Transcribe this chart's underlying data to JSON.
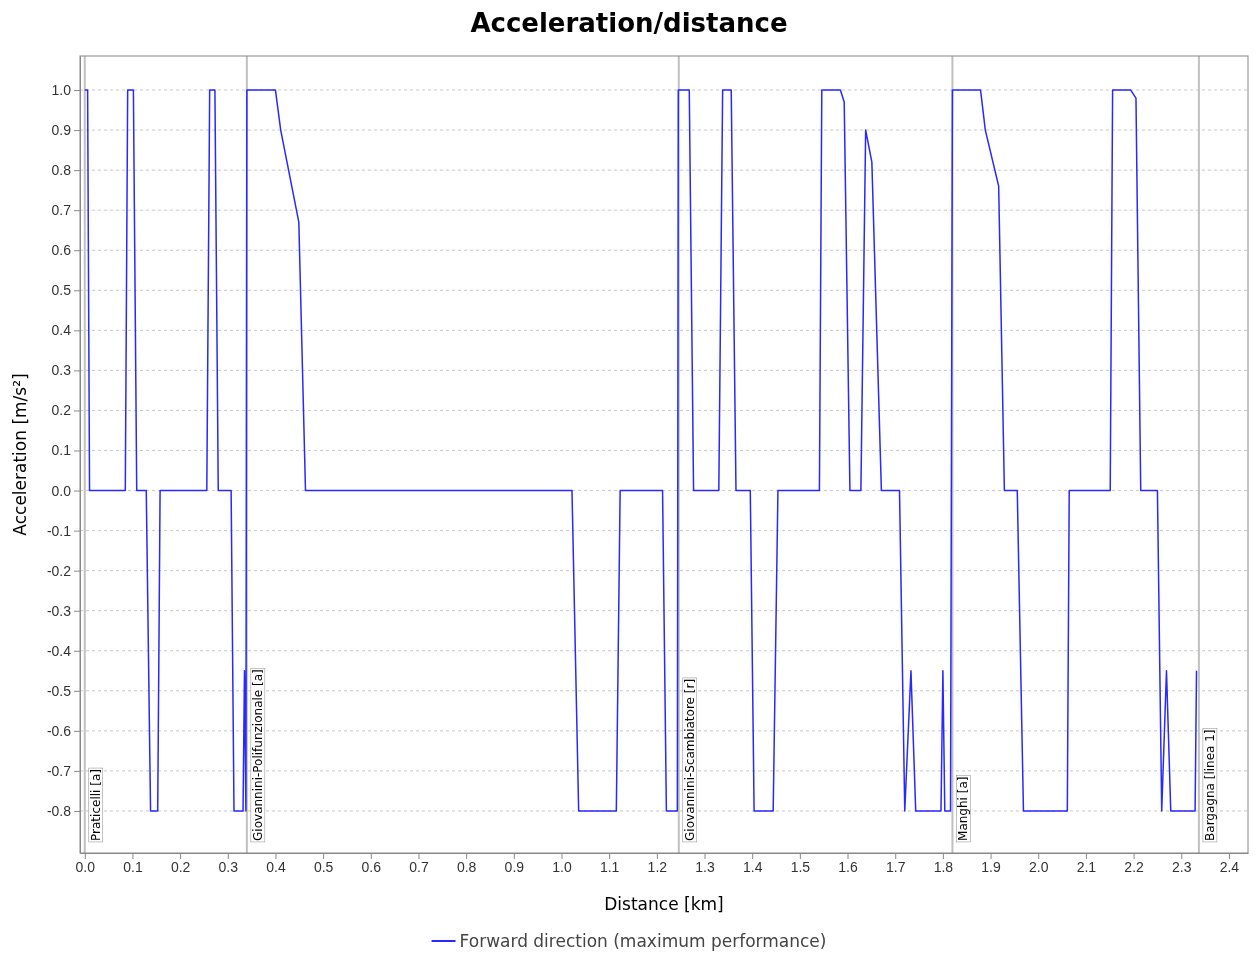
{
  "chart_data": {
    "type": "line",
    "title": "Acceleration/distance",
    "xlabel": "Distance [km]",
    "ylabel": "Acceleration [m/s²]",
    "xlim": [
      -0.01,
      2.44
    ],
    "ylim": [
      -0.905,
      1.085
    ],
    "xticks": [
      {
        "value": 0,
        "label": "0.0"
      },
      {
        "value": 0.1,
        "label": "0.1"
      },
      {
        "value": 0.2,
        "label": "0.2"
      },
      {
        "value": 0.3,
        "label": "0.3"
      },
      {
        "value": 0.4,
        "label": "0.4"
      },
      {
        "value": 0.5,
        "label": "0.5"
      },
      {
        "value": 0.6,
        "label": "0.6"
      },
      {
        "value": 0.7,
        "label": "0.7"
      },
      {
        "value": 0.8,
        "label": "0.8"
      },
      {
        "value": 0.9,
        "label": "0.9"
      },
      {
        "value": 1,
        "label": "1.0"
      },
      {
        "value": 1.1,
        "label": "1.1"
      },
      {
        "value": 1.2,
        "label": "1.2"
      },
      {
        "value": 1.3,
        "label": "1.3"
      },
      {
        "value": 1.4,
        "label": "1.4"
      },
      {
        "value": 1.5,
        "label": "1.5"
      },
      {
        "value": 1.6,
        "label": "1.6"
      },
      {
        "value": 1.7,
        "label": "1.7"
      },
      {
        "value": 1.8,
        "label": "1.8"
      },
      {
        "value": 1.9,
        "label": "1.9"
      },
      {
        "value": 2,
        "label": "2.0"
      },
      {
        "value": 2.1,
        "label": "2.1"
      },
      {
        "value": 2.2,
        "label": "2.2"
      },
      {
        "value": 2.3,
        "label": "2.3"
      },
      {
        "value": 2.4,
        "label": "2.4"
      }
    ],
    "yticks": [
      {
        "value": 1,
        "label": "1.0"
      },
      {
        "value": 0.9,
        "label": "0.9"
      },
      {
        "value": 0.8,
        "label": "0.8"
      },
      {
        "value": 0.7,
        "label": "0.7"
      },
      {
        "value": 0.6,
        "label": "0.6"
      },
      {
        "value": 0.5,
        "label": "0.5"
      },
      {
        "value": 0.4,
        "label": "0.4"
      },
      {
        "value": 0.3,
        "label": "0.3"
      },
      {
        "value": 0.2,
        "label": "0.2"
      },
      {
        "value": 0.1,
        "label": "0.1"
      },
      {
        "value": 0,
        "label": "0.0"
      },
      {
        "value": -0.1,
        "label": "-0.1"
      },
      {
        "value": -0.2,
        "label": "-0.2"
      },
      {
        "value": -0.3,
        "label": "-0.3"
      },
      {
        "value": -0.4,
        "label": "-0.4"
      },
      {
        "value": -0.5,
        "label": "-0.5"
      },
      {
        "value": -0.6,
        "label": "-0.6"
      },
      {
        "value": -0.7,
        "label": "-0.7"
      },
      {
        "value": -0.8,
        "label": "-0.8"
      }
    ],
    "grid": "y",
    "legend": "bottom",
    "line_style": "solid",
    "marker": "none",
    "ref_lines": [
      {
        "axis": "x",
        "value": 0,
        "label": "Praticelli [a]",
        "color": "#c0c0c0"
      },
      {
        "axis": "x",
        "value": 0.34,
        "label": "Giovannini-Polifunzionale [a]",
        "color": "#c0c0c0"
      },
      {
        "axis": "x",
        "value": 1.246,
        "label": "Giovannini-Scambiatore [r]",
        "color": "#c0c0c0"
      },
      {
        "axis": "x",
        "value": 1.82,
        "label": "Manghi [a]",
        "color": "#c0c0c0"
      },
      {
        "axis": "x",
        "value": 2.337,
        "label": "Bargagna [linea 1]",
        "color": "#c0c0c0"
      }
    ],
    "series": [
      {
        "name": "Forward direction (maximum performance)",
        "color": "#2828ff",
        "x": [
          0,
          0.006,
          0.01,
          0.085,
          0.09,
          0.102,
          0.109,
          0.129,
          0.138,
          0.153,
          0.158,
          0.256,
          0.262,
          0.273,
          0.28,
          0.307,
          0.313,
          0.332,
          0.335,
          0.338,
          0.34,
          0.4,
          0.411,
          0.449,
          0.463,
          1.022,
          1.036,
          1.115,
          1.123,
          1.212,
          1.22,
          1.243,
          1.245,
          1.268,
          1.277,
          1.33,
          1.338,
          1.356,
          1.366,
          1.396,
          1.404,
          1.444,
          1.454,
          1.541,
          1.546,
          1.585,
          1.593,
          1.605,
          1.628,
          1.638,
          1.651,
          1.671,
          1.709,
          1.72,
          1.733,
          1.743,
          1.796,
          1.8,
          1.804,
          1.816,
          1.82,
          1.879,
          1.889,
          1.917,
          1.929,
          1.956,
          1.969,
          2.061,
          2.065,
          2.151,
          2.156,
          2.194,
          2.205,
          2.215,
          2.25,
          2.259,
          2.269,
          2.278,
          2.329,
          2.332
        ],
        "values": [
          1,
          1,
          0,
          0,
          1,
          1,
          0,
          0,
          -0.8,
          -0.8,
          0,
          0,
          1,
          1,
          0,
          0,
          -0.8,
          -0.8,
          -0.45,
          -0.8,
          1,
          1,
          0.9,
          0.67,
          0,
          0,
          -0.8,
          -0.8,
          0,
          0,
          -0.8,
          -0.8,
          1,
          1,
          0,
          0,
          1,
          1,
          0,
          0,
          -0.8,
          -0.8,
          0,
          0,
          1,
          1,
          0.97,
          0,
          0,
          0.9,
          0.82,
          0,
          0,
          -0.8,
          -0.45,
          -0.8,
          -0.8,
          -0.45,
          -0.8,
          -0.8,
          1,
          1,
          0.9,
          0.76,
          0,
          0,
          -0.8,
          -0.8,
          0,
          0,
          1,
          1,
          0.98,
          0,
          0,
          -0.8,
          -0.45,
          -0.8,
          -0.8,
          -0.45
        ]
      }
    ]
  }
}
